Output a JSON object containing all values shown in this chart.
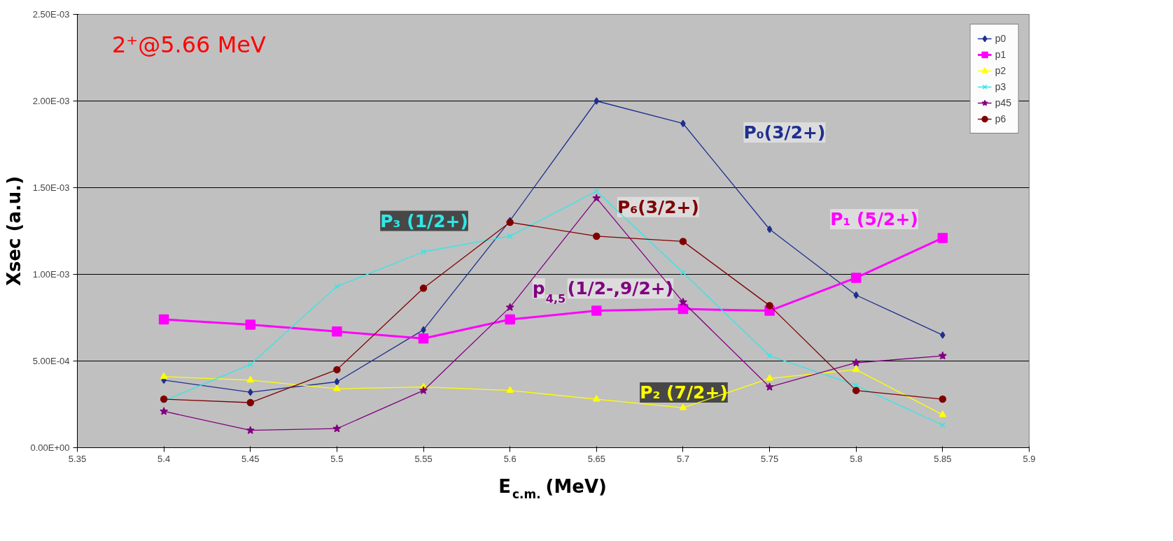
{
  "chart_data": {
    "type": "line",
    "xlabel": "E$_{c.m.}$ (MeV)",
    "ylabel": "Xsec (a.u.)",
    "x": [
      5.4,
      5.45,
      5.5,
      5.55,
      5.6,
      5.65,
      5.7,
      5.75,
      5.8,
      5.85
    ],
    "xlim": [
      5.35,
      5.9
    ],
    "xticks": [
      5.35,
      5.4,
      5.45,
      5.5,
      5.55,
      5.6,
      5.65,
      5.7,
      5.75,
      5.8,
      5.85,
      5.9
    ],
    "ylim": [
      0,
      0.0025
    ],
    "yticks": [
      {
        "value": 0,
        "label": "0.00E+00"
      },
      {
        "value": 0.0005,
        "label": "5.00E-04"
      },
      {
        "value": 0.001,
        "label": "1.00E-03"
      },
      {
        "value": 0.0015,
        "label": "1.50E-03"
      },
      {
        "value": 0.002,
        "label": "2.00E-03"
      },
      {
        "value": 0.0025,
        "label": "2.50E-03"
      }
    ],
    "grid": "y",
    "legend": "top right",
    "series": [
      {
        "name": "p0",
        "color": "#1f2f8f",
        "marker": "diamond",
        "values": [
          0.00039,
          0.00032,
          0.00038,
          0.00068,
          0.00131,
          0.002,
          0.00187,
          0.00126,
          0.00088,
          0.00065
        ]
      },
      {
        "name": "p1",
        "color": "#ff00ff",
        "marker": "square",
        "values": [
          0.00074,
          0.00071,
          0.00067,
          0.00063,
          0.00074,
          0.00079,
          0.0008,
          0.00079,
          0.00098,
          0.00121
        ]
      },
      {
        "name": "p2",
        "color": "#ffff00",
        "marker": "triangle",
        "values": [
          0.00041,
          0.00039,
          0.00034,
          0.00035,
          0.00033,
          0.00028,
          0.00023,
          0.0004,
          0.00045,
          0.00019
        ]
      },
      {
        "name": "p3",
        "color": "#33e6e6",
        "marker": "cross",
        "values": [
          0.00027,
          0.00048,
          0.00093,
          0.00113,
          0.00122,
          0.00148,
          0.00101,
          0.00053,
          0.00036,
          0.00013
        ]
      },
      {
        "name": "p45",
        "color": "#800080",
        "marker": "star",
        "values": [
          0.00021,
          0.0001,
          0.00011,
          0.00033,
          0.00081,
          0.00144,
          0.00084,
          0.00035,
          0.00049,
          0.00053
        ]
      },
      {
        "name": "p6",
        "color": "#800000",
        "marker": "circle",
        "values": [
          0.00028,
          0.00026,
          0.00045,
          0.00092,
          0.0013,
          0.00122,
          0.00119,
          0.00082,
          0.00033,
          0.00028
        ]
      }
    ],
    "annotations": [
      "P₀(3/2+)",
      "P₁ (5/2+)",
      "P₂ (7/2+)",
      "P₃ (1/2+)",
      "p$_{4,5}$(1/2-,9/2+)",
      "P₆(3/2+)",
      "2⁺@5.66 MeV"
    ]
  }
}
